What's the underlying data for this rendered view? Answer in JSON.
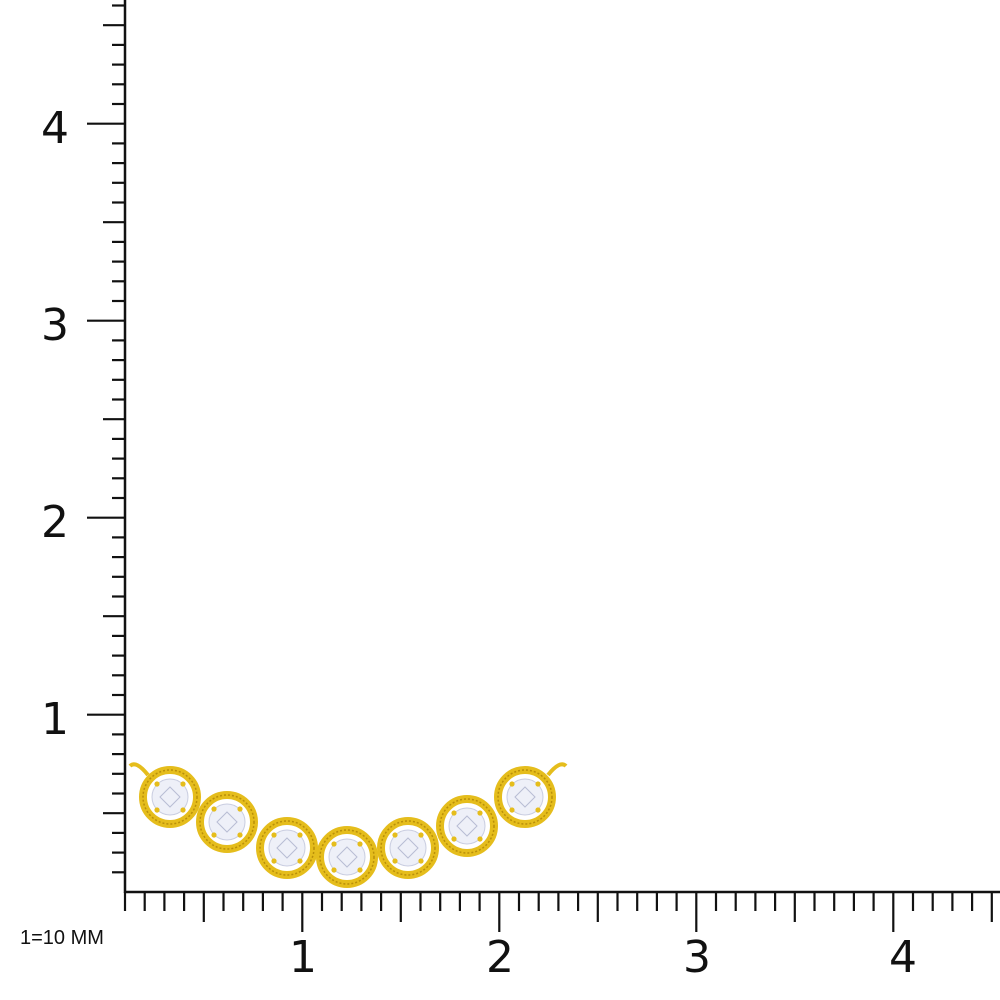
{
  "scale_note": "1=10 MM",
  "x_axis": {
    "labels": [
      "1",
      "2",
      "3",
      "4"
    ],
    "minor_divisions": 10
  },
  "y_axis": {
    "labels": [
      "1",
      "2",
      "3",
      "4"
    ],
    "minor_divisions": 10
  },
  "product": {
    "name": "curved seven-stone bezel bar necklace pendant",
    "stone_count": 7
  },
  "colors": {
    "axis": "#111111",
    "gold": "#e5bd1c",
    "gold_dark": "#b98f0a",
    "stone": "#eef0f8"
  }
}
